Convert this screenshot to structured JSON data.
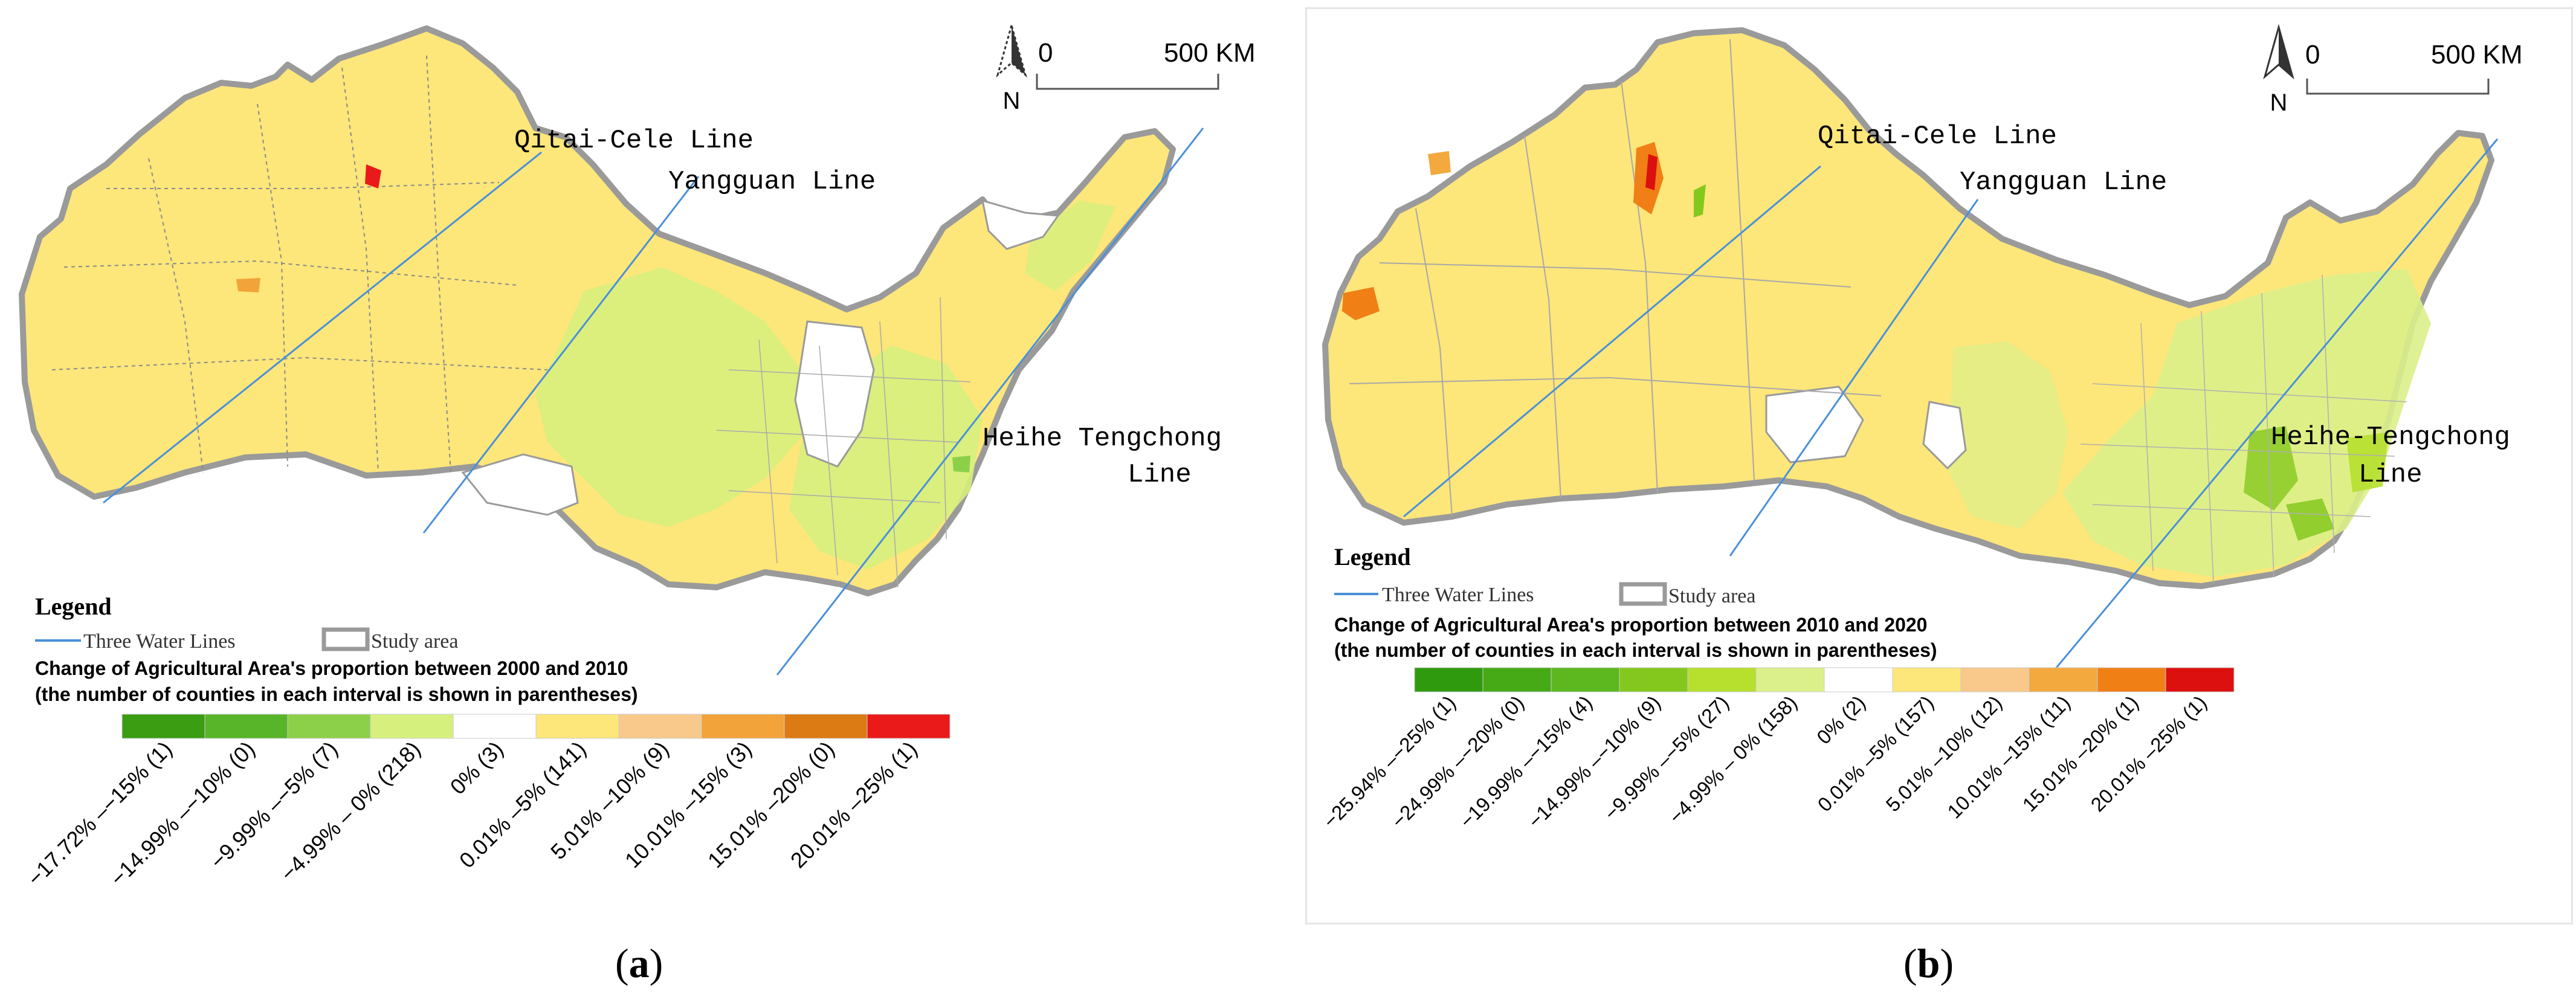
{
  "panels": [
    {
      "id": "a",
      "caption_letter": "a",
      "scale_zero": "0",
      "scale_label": "500 KM",
      "north_label": "N",
      "lines": {
        "qitai": "Qitai-Cele Line",
        "yangguan": "Yangguan Line",
        "heihe_1": "Heihe Tengchong",
        "heihe_2": "Line"
      },
      "legend": {
        "title": "Legend",
        "water_lines_label": "Three Water Lines",
        "study_area_label": "Study area",
        "heading_1": "Change of Agricultural Area's proportion between 2000 and 2010",
        "heading_2": "(the number of counties in each interval is shown in parentheses)",
        "classes": [
          {
            "label": "−17.72% –−15% (1)",
            "color": "#3a9d12"
          },
          {
            "label": "−14.99% –−10% (0)",
            "color": "#58b52a"
          },
          {
            "label": "−9.99% –−5% (7)",
            "color": "#8cd04a"
          },
          {
            "label": "−4.99% – 0% (218)",
            "color": "#d6f07e"
          },
          {
            "label": "0% (3)",
            "color": "#ffffff"
          },
          {
            "label": "0.01% –5% (141)",
            "color": "#fde67a"
          },
          {
            "label": "5.01% –10% (9)",
            "color": "#f8c98a"
          },
          {
            "label": "10.01% –15% (3)",
            "color": "#f2a33a"
          },
          {
            "label": "15.01% –20% (0)",
            "color": "#dc7a14"
          },
          {
            "label": "20.01% –25% (1)",
            "color": "#ea1a1a"
          }
        ]
      }
    },
    {
      "id": "b",
      "caption_letter": "b",
      "scale_zero": "0",
      "scale_label": "500 KM",
      "north_label": "N",
      "lines": {
        "qitai": "Qitai-Cele Line",
        "yangguan": "Yangguan Line",
        "heihe_1": "Heihe-Tengchong",
        "heihe_2": "Line"
      },
      "legend": {
        "title": "Legend",
        "water_lines_label": "Three Water Lines",
        "study_area_label": "Study area",
        "heading_1": "Change of Agricultural Area's proportion between 2010 and 2020",
        "heading_2": "(the number of counties in each interval is shown in parentheses)",
        "classes": [
          {
            "label": "−25.94% –−25% (1)",
            "color": "#2f9a0e"
          },
          {
            "label": "−24.99% –−20% (0)",
            "color": "#45aa16"
          },
          {
            "label": "−19.99% –−15% (4)",
            "color": "#5cb81e"
          },
          {
            "label": "−14.99% –−10% (9)",
            "color": "#84c81e"
          },
          {
            "label": "−9.99% –−5% (27)",
            "color": "#b6df2e"
          },
          {
            "label": "−4.99% – 0% (158)",
            "color": "#dbf08a"
          },
          {
            "label": "0% (2)",
            "color": "#ffffff"
          },
          {
            "label": "0.01% –5% (157)",
            "color": "#fde67a"
          },
          {
            "label": "5.01% –10% (12)",
            "color": "#f8c98a"
          },
          {
            "label": "10.01% –15% (11)",
            "color": "#f3a93e"
          },
          {
            "label": "15.01% –20% (1)",
            "color": "#f07f16"
          },
          {
            "label": "20.01% –25% (1)",
            "color": "#dd1010"
          }
        ]
      }
    }
  ],
  "colors": {
    "region_yellow": "#fde67a",
    "region_green": "#d6f07e",
    "boundary": "#9a9a9a",
    "water_line": "#4a90d9"
  }
}
